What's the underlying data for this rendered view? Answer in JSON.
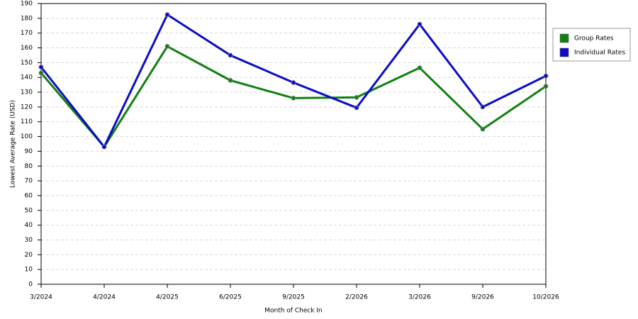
{
  "chart_data": {
    "type": "line",
    "x_label": "Month of Check In",
    "y_label": "Lowest Average Rate (USD)",
    "categories": [
      "3/2024",
      "4/2024",
      "4/2025",
      "6/2025",
      "9/2025",
      "2/2026",
      "3/2026",
      "9/2026",
      "10/2026"
    ],
    "series": [
      {
        "name": "Group Rates",
        "color": "#128012",
        "values": [
          143,
          93,
          161,
          138,
          126,
          126.5,
          146.5,
          105,
          134
        ]
      },
      {
        "name": "Individual Rates",
        "color": "#0c0cc8",
        "values": [
          147,
          93,
          182.5,
          155,
          136.5,
          119.5,
          176,
          120,
          141
        ]
      }
    ],
    "ylim": [
      0,
      190
    ],
    "yticks": [
      0,
      10,
      20,
      30,
      40,
      50,
      60,
      70,
      80,
      90,
      100,
      110,
      120,
      130,
      140,
      150,
      160,
      170,
      180,
      190
    ],
    "grid": true,
    "legend": "right"
  }
}
